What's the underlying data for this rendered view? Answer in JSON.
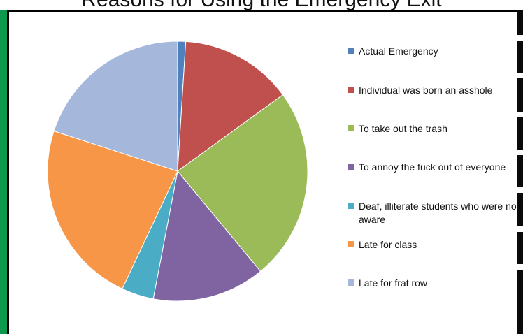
{
  "chart_data": {
    "type": "pie",
    "title": "",
    "slices": [
      {
        "label": "Actual Emergency",
        "value": 1,
        "color": "#4F81BD"
      },
      {
        "label": "Individual was born an asshole",
        "value": 14,
        "color": "#C0504D"
      },
      {
        "label": "To take out the trash",
        "value": 24,
        "color": "#9BBB59"
      },
      {
        "label": "To annoy the fuck out of everyone",
        "value": 14,
        "color": "#8064A2"
      },
      {
        "label": "Deaf, illiterate students who were not aware",
        "value": 4,
        "color": "#4BACC6"
      },
      {
        "label": "Late for class",
        "value": 23,
        "color": "#F79646"
      },
      {
        "label": "Late for frat row",
        "value": 20,
        "color": "#A5B8DB"
      }
    ],
    "legend_position": "right"
  },
  "header": {
    "title_partial": "Reasons for Using the Emergency Exit"
  }
}
